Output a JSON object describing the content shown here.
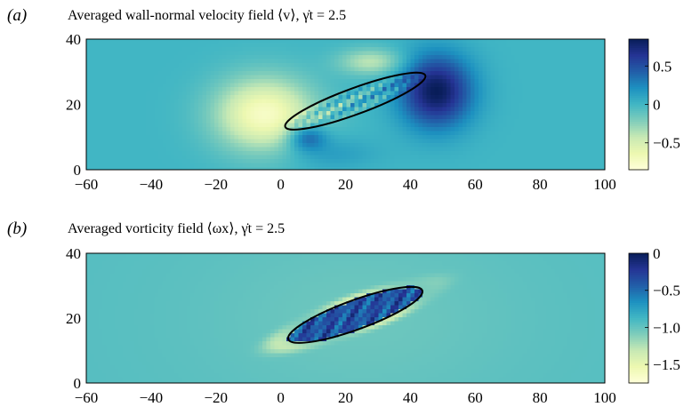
{
  "chart_data": [
    {
      "type": "heatmap",
      "panel_label": "(a)",
      "title": "Averaged wall-normal velocity field ⟨v⟩, γ̇t = 2.5",
      "xlim": [
        -60,
        100
      ],
      "ylim": [
        0,
        40
      ],
      "xticks": [
        "−60",
        "−40",
        "−20",
        "0",
        "20",
        "40",
        "60",
        "80",
        "100"
      ],
      "yticks": [
        "0",
        "20",
        "40"
      ],
      "colorbar": {
        "range": [
          -0.85,
          0.85
        ],
        "ticks": [
          "0.5",
          "0",
          "−0.5"
        ],
        "tick_values": [
          0.5,
          0,
          -0.5
        ]
      },
      "colormap": [
        "#ffffd9",
        "#edf8b1",
        "#c7e9b4",
        "#7fcdbb",
        "#41b6c4",
        "#1d91c0",
        "#225ea8",
        "#253494",
        "#081d58"
      ],
      "ellipse": {
        "center": [
          23,
          21
        ],
        "semi_axes": [
          23,
          4
        ],
        "angle_deg": 20
      },
      "features": [
        {
          "kind": "negative",
          "center": [
            -5,
            17
          ],
          "amplitude": -0.75,
          "extent": [
            15,
            11
          ]
        },
        {
          "kind": "positive",
          "center": [
            48,
            24
          ],
          "amplitude": 0.85,
          "extent": [
            11,
            11
          ]
        },
        {
          "kind": "positive",
          "center": [
            8,
            10
          ],
          "amplitude": 0.5,
          "extent": [
            6,
            4
          ]
        },
        {
          "kind": "negative",
          "center": [
            28,
            33
          ],
          "amplitude": -0.4,
          "extent": [
            10,
            4
          ]
        },
        {
          "kind": "positive",
          "center": [
            15,
            5
          ],
          "amplitude": 0.15,
          "extent": [
            14,
            5
          ]
        }
      ]
    },
    {
      "type": "heatmap",
      "panel_label": "(b)",
      "title": "Averaged vorticity field ⟨ωx⟩, γ̇t = 2.5",
      "xlim": [
        -60,
        100
      ],
      "ylim": [
        0,
        40
      ],
      "xticks": [
        "−60",
        "−40",
        "−20",
        "0",
        "20",
        "40",
        "60",
        "80",
        "100"
      ],
      "yticks": [
        "0",
        "20",
        "40"
      ],
      "colorbar": {
        "range": [
          -1.75,
          0
        ],
        "ticks": [
          "0",
          "−0.5",
          "−1.0",
          "−1.5"
        ],
        "tick_values": [
          0,
          -0.5,
          -1.0,
          -1.5
        ]
      },
      "colormap": [
        "#ffffd9",
        "#edf8b1",
        "#c7e9b4",
        "#7fcdbb",
        "#41b6c4",
        "#1d91c0",
        "#225ea8",
        "#253494",
        "#081d58"
      ],
      "ellipse": {
        "center": [
          23,
          21
        ],
        "semi_axes": [
          22,
          4.5
        ],
        "angle_deg": 20
      },
      "background_value": -0.95,
      "inside_value": -0.3,
      "halo_value": -1.3
    }
  ]
}
